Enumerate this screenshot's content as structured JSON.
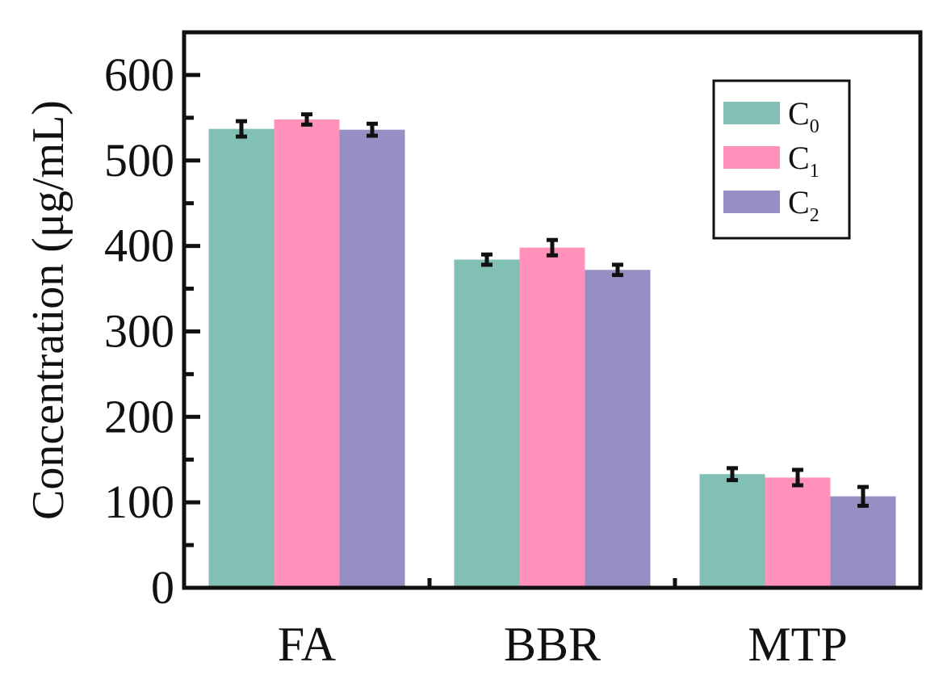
{
  "chart_data": {
    "type": "bar",
    "title": "",
    "xlabel": "",
    "ylabel": "Concentration (μg/mL)",
    "ylim": [
      0,
      650
    ],
    "yticks": [
      0,
      100,
      200,
      300,
      400,
      500,
      600
    ],
    "yticks_minor": [
      50,
      150,
      250,
      350,
      450,
      550
    ],
    "categories": [
      "FA",
      "BBR",
      "MTP"
    ],
    "series": [
      {
        "name": "C",
        "sub": "0",
        "color": "#82BFB5",
        "values": [
          537,
          384,
          133
        ],
        "errors": [
          9,
          6,
          7
        ]
      },
      {
        "name": "C",
        "sub": "1",
        "color": "#FF91BA",
        "values": [
          548,
          398,
          129
        ],
        "errors": [
          6,
          9,
          9
        ]
      },
      {
        "name": "C",
        "sub": "2",
        "color": "#998EC3",
        "values": [
          536,
          372,
          107
        ],
        "errors": [
          7,
          6,
          11
        ]
      }
    ],
    "legend_position": "top-right",
    "grid": false
  }
}
